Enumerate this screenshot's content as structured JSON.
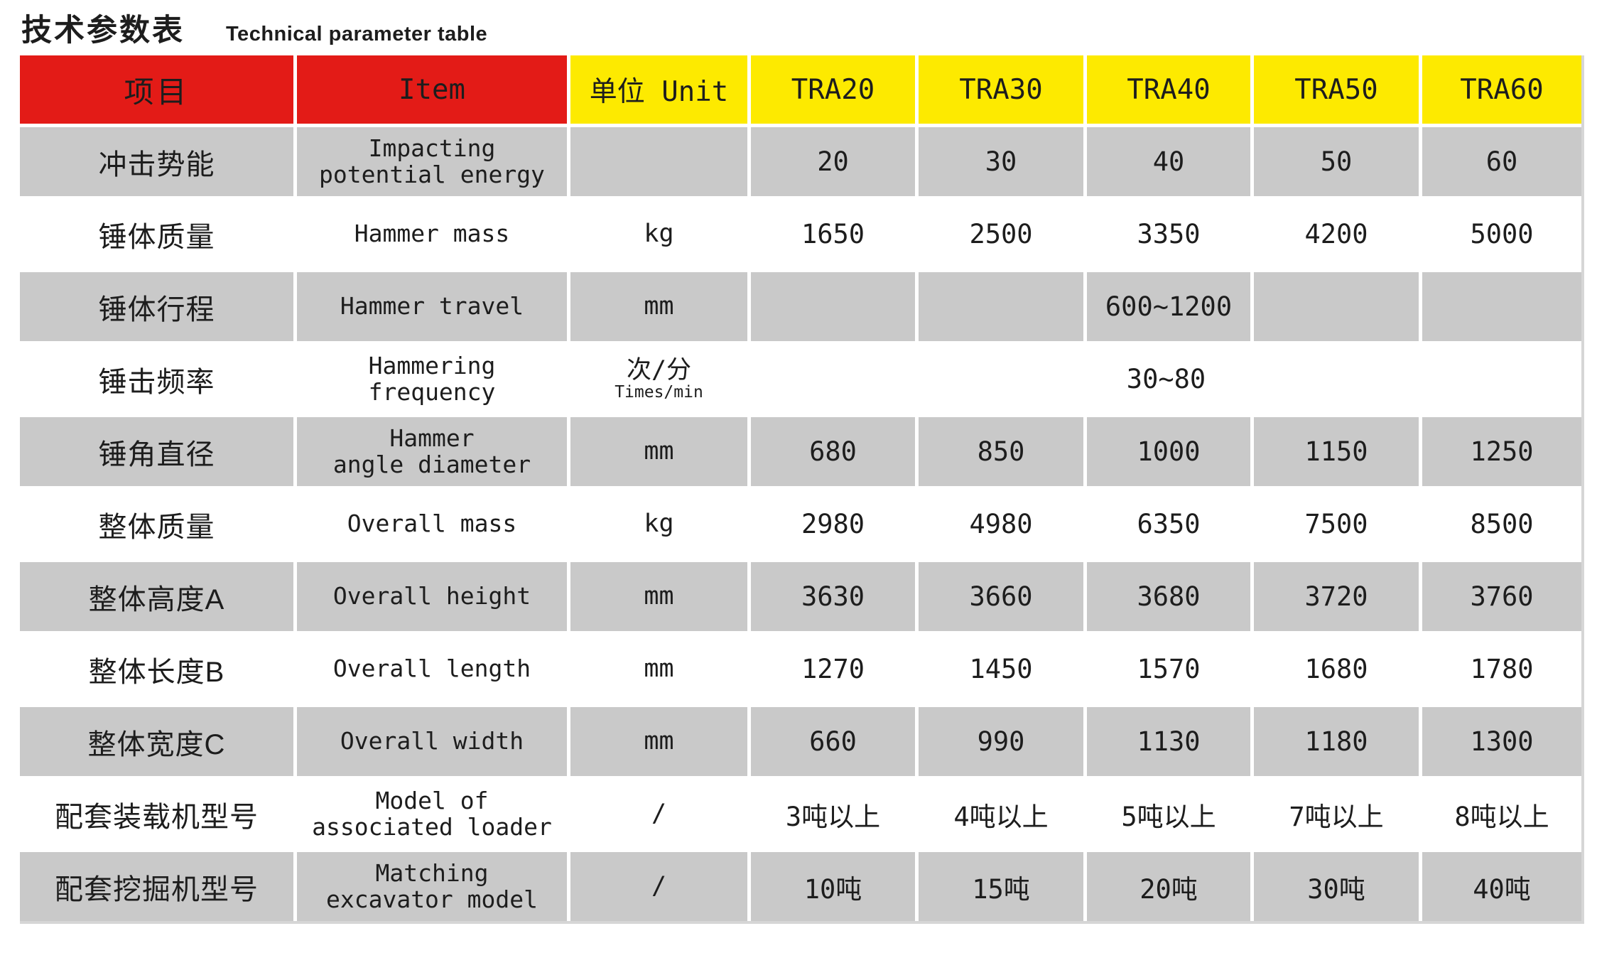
{
  "page_title": {
    "zh": "技术参数表",
    "en": "Technical parameter table"
  },
  "colors": {
    "header_red": "#e31b17",
    "header_yellow": "#fdea00",
    "row_gray": "#c9c9c9",
    "row_white": "#ffffff",
    "text": "#1d1d1d"
  },
  "table": {
    "headers": {
      "item_zh": "项目",
      "item_en": "Item",
      "unit": "单位 Unit",
      "models": [
        "TRA20",
        "TRA30",
        "TRA40",
        "TRA50",
        "TRA60"
      ]
    },
    "rows": [
      {
        "zh": "冲击势能",
        "en": "Impacting\npotential energy",
        "unit": "",
        "values": [
          "20",
          "30",
          "40",
          "50",
          "60"
        ]
      },
      {
        "zh": "锤体质量",
        "en": "Hammer mass",
        "unit": "kg",
        "values": [
          "1650",
          "2500",
          "3350",
          "4200",
          "5000"
        ]
      },
      {
        "zh": "锤体行程",
        "en": "Hammer travel",
        "unit": "mm",
        "values": [
          "",
          "",
          "600~1200",
          "",
          ""
        ]
      },
      {
        "zh": "锤击频率",
        "en": "Hammering\nfrequency",
        "unit": "次/分",
        "unit_sub": "Times/min",
        "values_span": "30~80"
      },
      {
        "zh": "锤角直径",
        "en": "Hammer\nangle diameter",
        "unit": "mm",
        "values": [
          "680",
          "850",
          "1000",
          "1150",
          "1250"
        ]
      },
      {
        "zh": "整体质量",
        "en": "Overall mass",
        "unit": "kg",
        "values": [
          "2980",
          "4980",
          "6350",
          "7500",
          "8500"
        ]
      },
      {
        "zh": "整体高度A",
        "en": "Overall height",
        "unit": "mm",
        "values": [
          "3630",
          "3660",
          "3680",
          "3720",
          "3760"
        ]
      },
      {
        "zh": "整体长度B",
        "en": "Overall length",
        "unit": "mm",
        "values": [
          "1270",
          "1450",
          "1570",
          "1680",
          "1780"
        ]
      },
      {
        "zh": "整体宽度C",
        "en": "Overall width",
        "unit": "mm",
        "values": [
          "660",
          "990",
          "1130",
          "1180",
          "1300"
        ]
      },
      {
        "zh": "配套装载机型号",
        "en": "Model of\nassociated loader",
        "unit": "/",
        "values": [
          "3吨以上",
          "4吨以上",
          "5吨以上",
          "7吨以上",
          "8吨以上"
        ]
      },
      {
        "zh": "配套挖掘机型号",
        "en": "Matching\nexcavator model",
        "unit": "/",
        "values": [
          "10吨",
          "15吨",
          "20吨",
          "30吨",
          "40吨"
        ]
      }
    ]
  }
}
